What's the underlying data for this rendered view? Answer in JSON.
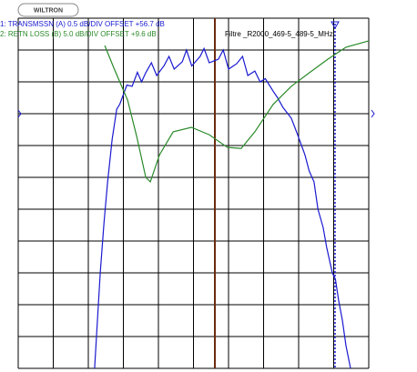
{
  "chart_data": {
    "type": "line",
    "logo": "WILTRON",
    "title": "Filtre _R2000_469-5_489-5_MHz",
    "xlim": [
      0,
      10
    ],
    "ylim": [
      0,
      11
    ],
    "series": [
      {
        "name": "1: TRANSMSSN (A)   0.5 dB/DIV   OFFSET +56.7 dB",
        "color": "#1a1ad0",
        "x": [
          2.18,
          2.34,
          2.45,
          2.55,
          2.68,
          2.81,
          2.9,
          2.99,
          3.1,
          3.25,
          3.4,
          3.52,
          3.64,
          3.8,
          3.95,
          4.16,
          4.3,
          4.45,
          4.68,
          4.8,
          4.95,
          5.19,
          5.3,
          5.45,
          5.71,
          5.85,
          6.0,
          6.23,
          6.4,
          6.55,
          6.75,
          6.9,
          7.05,
          7.27,
          7.4,
          7.55,
          7.79,
          7.95,
          8.05,
          8.18,
          8.3,
          8.44,
          8.55,
          8.7,
          8.8,
          8.96,
          9.05,
          9.14,
          9.25,
          9.35,
          9.48
        ],
        "values": [
          0,
          3.0,
          4.6,
          5.86,
          7.2,
          8.14,
          8.3,
          8.57,
          8.9,
          8.86,
          9.3,
          9.0,
          9.29,
          9.6,
          9.2,
          9.51,
          9.8,
          9.4,
          9.63,
          10.0,
          9.5,
          9.8,
          10.05,
          9.6,
          9.71,
          10.0,
          9.4,
          9.57,
          9.8,
          9.2,
          9.34,
          9.0,
          9.1,
          8.71,
          8.5,
          8.2,
          7.86,
          7.4,
          7.1,
          6.71,
          6.2,
          5.86,
          5.0,
          4.43,
          3.8,
          3.0,
          2.8,
          2.14,
          1.5,
          0.71,
          0
        ]
      },
      {
        "name": "2: RETN LOSS (B)   5.0 dB/DIV   OFFSET +9.6 dB",
        "color": "#2a8a2a",
        "x": [
          2.47,
          2.73,
          3.12,
          3.38,
          3.64,
          3.77,
          4.03,
          4.42,
          4.94,
          5.45,
          5.97,
          6.36,
          6.75,
          7.27,
          7.79,
          8.31,
          8.83,
          9.35,
          10
        ],
        "values": [
          10.14,
          9.43,
          8.43,
          7.29,
          6.0,
          5.86,
          6.71,
          7.43,
          7.57,
          7.34,
          6.94,
          6.91,
          7.43,
          8.29,
          8.86,
          9.29,
          9.71,
          10.09,
          10.29
        ]
      }
    ]
  }
}
